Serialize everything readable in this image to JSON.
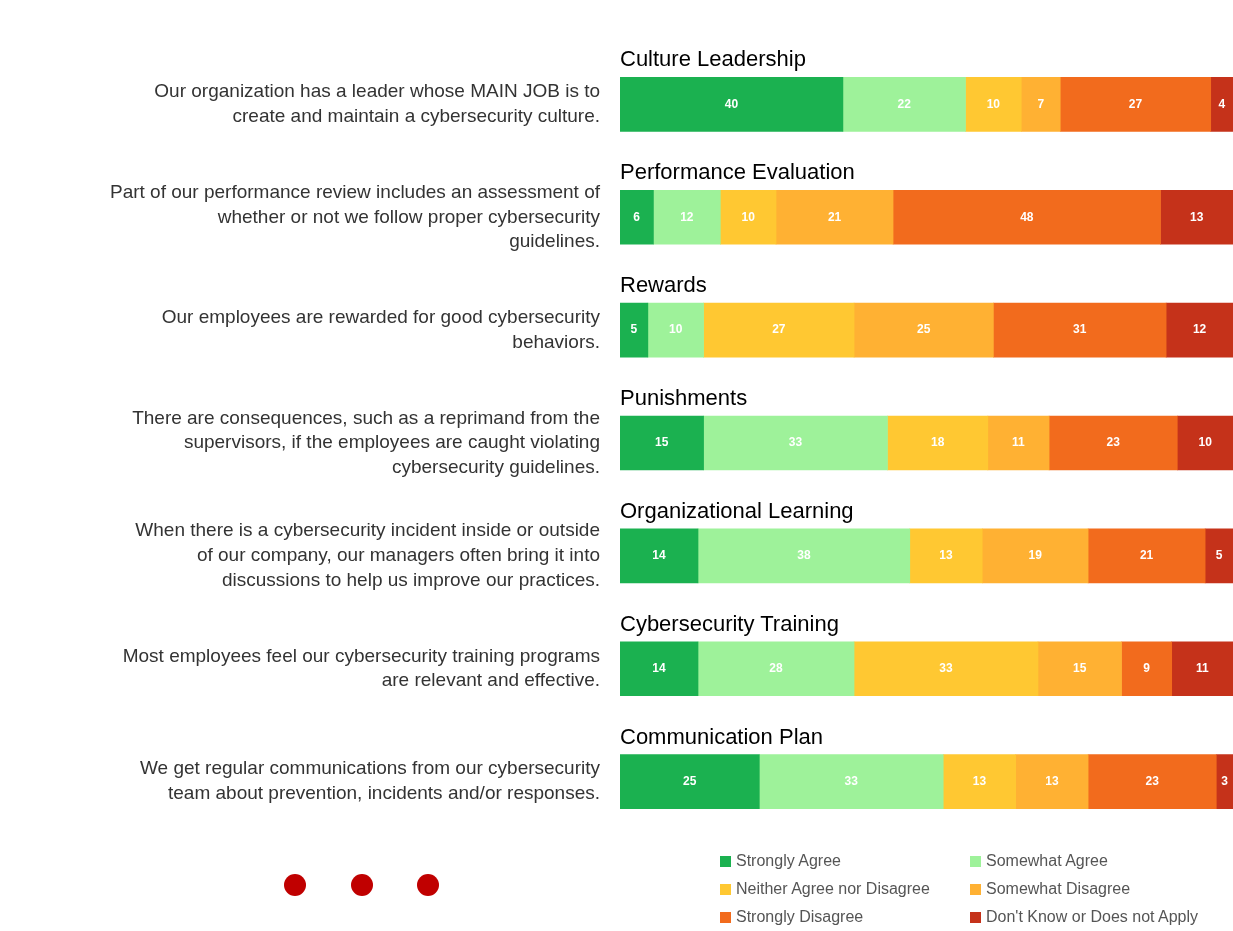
{
  "chart_data": {
    "type": "bar",
    "orientation": "horizontal",
    "stacked": true,
    "data_labels": true,
    "tick_labels": "y",
    "xlim": [
      0,
      110
    ],
    "legend": "bottom",
    "categories": [
      "Our organization has a leader whose MAIN JOB is to create and maintain a cybersecurity culture.",
      "Part of our performance review includes an assessment of whether or not we follow proper cybersecurity guidelines.",
      "Our employees are rewarded for good cybersecurity behaviors.",
      "There are consequences, such as a reprimand from the supervisors, if the employees are caught violating cybersecurity guidelines.",
      "When there is a cybersecurity incident inside or outside of our company, our managers often bring it into discussions to help us improve our practices.",
      "Most employees feel our cybersecurity training programs are relevant and effective.",
      "We get regular communications from our cybersecurity team about prevention, incidents and/or responses."
    ],
    "annotations": [
      "Culture Leadership",
      "Performance Evaluation",
      "Rewards",
      "Punishments",
      "Organizational Learning",
      "Cybersecurity Training",
      "Communication Plan"
    ],
    "series": [
      {
        "name": "Strongly Agree",
        "color": "#1bb150",
        "values": [
          40,
          6,
          5,
          15,
          14,
          14,
          25
        ]
      },
      {
        "name": "Somewhat Agree",
        "color": "#9ef29a",
        "values": [
          22,
          12,
          10,
          33,
          38,
          28,
          33
        ]
      },
      {
        "name": "Neither Agree nor Disagree",
        "color": "#ffc832",
        "values": [
          10,
          10,
          27,
          18,
          13,
          33,
          13
        ]
      },
      {
        "name": "Somewhat Disagree",
        "color": "#ffb133",
        "values": [
          7,
          21,
          25,
          11,
          19,
          15,
          13
        ]
      },
      {
        "name": "Strongly Disagree",
        "color": "#f26b1d",
        "values": [
          27,
          48,
          31,
          23,
          21,
          9,
          23
        ]
      },
      {
        "name": "Don't Know or Does not Apply",
        "color": "#c5321a",
        "values": [
          4,
          13,
          12,
          10,
          5,
          11,
          3
        ]
      }
    ]
  }
}
